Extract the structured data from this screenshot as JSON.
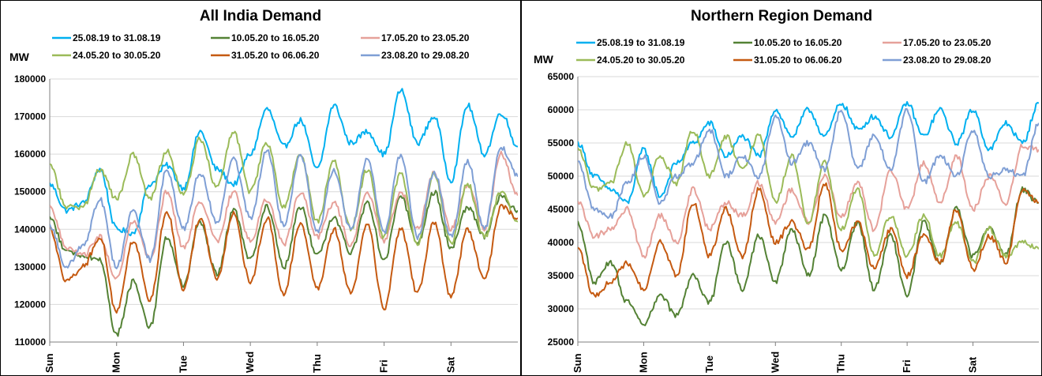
{
  "chart_data": [
    {
      "type": "line",
      "title": "All India Demand",
      "ylabel": "MW",
      "ylim": [
        110000,
        180000
      ],
      "yticks": [
        110000,
        120000,
        130000,
        140000,
        150000,
        160000,
        170000,
        180000
      ],
      "ytick_labels": [
        "110000",
        "120000",
        "130000",
        "140000",
        "150000",
        "160000",
        "170000",
        "180000"
      ],
      "x_labels": [
        "Sun",
        "Mon",
        "Tue",
        "Wed",
        "Thu",
        "Fri",
        "Sat"
      ],
      "x_hours": [
        0,
        24,
        48,
        72,
        96,
        120,
        144
      ],
      "x_range_hours": [
        0,
        168
      ],
      "legend_position": "top",
      "grid": "horizontal",
      "series": [
        {
          "name": "25.08.19 to 31.08.19",
          "color": "#00b0f0",
          "x": [
            0,
            6,
            12,
            18,
            24,
            30,
            36,
            42,
            48,
            54,
            60,
            66,
            72,
            78,
            84,
            90,
            96,
            102,
            108,
            114,
            120,
            126,
            132,
            138,
            144,
            150,
            156,
            162,
            168
          ],
          "values": [
            152000,
            145000,
            147000,
            156000,
            140000,
            139000,
            152000,
            157000,
            151000,
            166000,
            156000,
            152000,
            160000,
            172000,
            162000,
            169000,
            156000,
            173000,
            163000,
            166000,
            160000,
            177000,
            163000,
            170000,
            153000,
            173000,
            160000,
            171000,
            162000
          ]
        },
        {
          "name": "10.05.20 to 16.05.20",
          "color": "#548235",
          "x": [
            0,
            6,
            12,
            18,
            24,
            30,
            36,
            42,
            48,
            54,
            60,
            66,
            72,
            78,
            84,
            90,
            96,
            102,
            108,
            114,
            120,
            126,
            132,
            138,
            144,
            150,
            156,
            162,
            168
          ],
          "values": [
            143000,
            134000,
            133000,
            132000,
            112000,
            126000,
            114000,
            138000,
            125000,
            142000,
            128000,
            145000,
            132000,
            146000,
            130000,
            146000,
            133000,
            143000,
            134000,
            147000,
            132000,
            149000,
            136000,
            150000,
            135000,
            146000,
            138000,
            149000,
            145000
          ]
        },
        {
          "name": "17.05.20 to 23.05.20",
          "color": "#e6a19a",
          "x": [
            0,
            6,
            12,
            18,
            24,
            30,
            36,
            42,
            48,
            54,
            60,
            66,
            72,
            78,
            84,
            90,
            96,
            102,
            108,
            114,
            120,
            126,
            132,
            138,
            144,
            150,
            156,
            162,
            168
          ],
          "values": [
            146000,
            135000,
            133000,
            138000,
            127000,
            142000,
            132000,
            150000,
            135000,
            147000,
            137000,
            150000,
            137000,
            148000,
            136000,
            150000,
            138000,
            147000,
            136000,
            150000,
            137000,
            150000,
            140000,
            155000,
            140000,
            152000,
            140000,
            160000,
            149000
          ]
        },
        {
          "name": "24.05.20 to 30.05.20",
          "color": "#9bbb59",
          "x": [
            0,
            6,
            12,
            18,
            24,
            30,
            36,
            42,
            48,
            54,
            60,
            66,
            72,
            78,
            84,
            90,
            96,
            102,
            108,
            114,
            120,
            126,
            132,
            138,
            144,
            150,
            156,
            162,
            168
          ],
          "values": [
            157000,
            146000,
            146000,
            156000,
            148000,
            160000,
            148000,
            161000,
            149000,
            164000,
            151000,
            166000,
            150000,
            163000,
            146000,
            160000,
            142000,
            158000,
            140000,
            156000,
            138000,
            155000,
            136000,
            155000,
            136000,
            152000,
            138000,
            150000,
            142000
          ]
        },
        {
          "name": "31.05.20 to 06.06.20",
          "color": "#c55a11",
          "x": [
            0,
            6,
            12,
            18,
            24,
            30,
            36,
            42,
            48,
            54,
            60,
            66,
            72,
            78,
            84,
            90,
            96,
            102,
            108,
            114,
            120,
            126,
            132,
            138,
            144,
            150,
            156,
            162,
            168
          ],
          "values": [
            140000,
            126000,
            130000,
            138000,
            118000,
            137000,
            121000,
            145000,
            124000,
            143000,
            127000,
            144000,
            126000,
            143000,
            123000,
            142000,
            124000,
            140000,
            123000,
            141000,
            119000,
            140000,
            123000,
            142000,
            122000,
            140000,
            127000,
            146000,
            143000
          ]
        },
        {
          "name": "23.08.20 to 29.08.20",
          "color": "#7f9fd5",
          "x": [
            0,
            6,
            12,
            18,
            24,
            30,
            36,
            42,
            48,
            54,
            60,
            66,
            72,
            78,
            84,
            90,
            96,
            102,
            108,
            114,
            120,
            126,
            132,
            138,
            144,
            150,
            156,
            162,
            168
          ],
          "values": [
            141000,
            130000,
            136000,
            148000,
            130000,
            145000,
            132000,
            156000,
            140000,
            155000,
            142000,
            159000,
            143000,
            161000,
            141000,
            160000,
            139000,
            156000,
            140000,
            159000,
            139000,
            160000,
            138000,
            155000,
            138000,
            158000,
            140000,
            162000,
            154000
          ]
        }
      ]
    },
    {
      "type": "line",
      "title": "Northern Region Demand",
      "ylabel": "MW",
      "ylim": [
        25000,
        65000
      ],
      "yticks": [
        25000,
        30000,
        35000,
        40000,
        45000,
        50000,
        55000,
        60000,
        65000
      ],
      "ytick_labels": [
        "25000",
        "30000",
        "35000",
        "40000",
        "45000",
        "50000",
        "55000",
        "60000",
        "65000"
      ],
      "x_labels": [
        "Sun",
        "Mon",
        "Tue",
        "Wed",
        "Thu",
        "Fri",
        "Sat"
      ],
      "x_hours": [
        0,
        24,
        48,
        72,
        96,
        120,
        144
      ],
      "x_range_hours": [
        0,
        168
      ],
      "legend_position": "top",
      "grid": "horizontal",
      "series": [
        {
          "name": "25.08.19 to 31.08.19",
          "color": "#00b0f0",
          "x": [
            0,
            6,
            12,
            18,
            24,
            30,
            36,
            42,
            48,
            54,
            60,
            66,
            72,
            78,
            84,
            90,
            96,
            102,
            108,
            114,
            120,
            126,
            132,
            138,
            144,
            150,
            156,
            162,
            168
          ],
          "values": [
            55000,
            50000,
            48000,
            46000,
            54000,
            47000,
            52000,
            55000,
            58000,
            53000,
            56000,
            53000,
            60000,
            56000,
            60000,
            56000,
            61000,
            57000,
            59000,
            56000,
            61000,
            56000,
            60000,
            55000,
            60000,
            54000,
            58000,
            55000,
            61000
          ]
        },
        {
          "name": "10.05.20 to 16.05.20",
          "color": "#548235",
          "x": [
            0,
            6,
            12,
            18,
            24,
            30,
            36,
            42,
            48,
            54,
            60,
            66,
            72,
            78,
            84,
            90,
            96,
            102,
            108,
            114,
            120,
            126,
            132,
            138,
            144,
            150,
            156,
            162,
            168
          ],
          "values": [
            43000,
            34000,
            37000,
            31000,
            27500,
            32000,
            29000,
            35000,
            31000,
            40000,
            33000,
            41000,
            34000,
            42000,
            35000,
            44000,
            36000,
            43000,
            33000,
            41000,
            32000,
            43000,
            37000,
            45000,
            38000,
            42000,
            38000,
            48000,
            46000
          ]
        },
        {
          "name": "17.05.20 to 23.05.20",
          "color": "#e6a19a",
          "x": [
            0,
            6,
            12,
            18,
            24,
            30,
            36,
            42,
            48,
            54,
            60,
            66,
            72,
            78,
            84,
            90,
            96,
            102,
            108,
            114,
            120,
            126,
            132,
            138,
            144,
            150,
            156,
            162,
            168
          ],
          "values": [
            46000,
            41000,
            42000,
            45000,
            38000,
            44000,
            40000,
            48000,
            42000,
            46000,
            44000,
            49000,
            43000,
            48000,
            43000,
            50000,
            44000,
            49000,
            42000,
            51000,
            45000,
            52000,
            46000,
            53000,
            45000,
            50000,
            46000,
            54500,
            54000
          ]
        },
        {
          "name": "24.05.20 to 30.05.20",
          "color": "#9bbb59",
          "x": [
            0,
            6,
            12,
            18,
            24,
            30,
            36,
            42,
            48,
            54,
            60,
            66,
            72,
            78,
            84,
            90,
            96,
            102,
            108,
            114,
            120,
            126,
            132,
            138,
            144,
            150,
            156,
            162,
            168
          ],
          "values": [
            54000,
            48000,
            49000,
            55000,
            47000,
            53000,
            49000,
            57000,
            50000,
            56000,
            51000,
            56000,
            46000,
            53000,
            43000,
            52000,
            42000,
            48000,
            38000,
            44000,
            38000,
            44000,
            38000,
            43000,
            37000,
            42000,
            38000,
            40000,
            39000
          ]
        },
        {
          "name": "31.05.20 to 06.06.20",
          "color": "#c55a11",
          "x": [
            0,
            6,
            12,
            18,
            24,
            30,
            36,
            42,
            48,
            54,
            60,
            66,
            72,
            78,
            84,
            90,
            96,
            102,
            108,
            114,
            120,
            126,
            132,
            138,
            144,
            150,
            156,
            162,
            168
          ],
          "values": [
            39000,
            32000,
            34000,
            37000,
            33000,
            40000,
            35000,
            46000,
            38000,
            45000,
            38000,
            48000,
            40000,
            43000,
            39000,
            49000,
            39000,
            43000,
            36000,
            42000,
            35000,
            41000,
            37000,
            45000,
            36000,
            41000,
            37000,
            48000,
            46000
          ]
        },
        {
          "name": "23.08.20 to 29.08.20",
          "color": "#7f9fd5",
          "x": [
            0,
            6,
            12,
            18,
            24,
            30,
            36,
            42,
            48,
            54,
            60,
            66,
            72,
            78,
            84,
            90,
            96,
            102,
            108,
            114,
            120,
            126,
            132,
            138,
            144,
            150,
            156,
            162,
            168
          ],
          "values": [
            52000,
            45000,
            44000,
            49000,
            53000,
            46000,
            50000,
            52000,
            57000,
            50000,
            53000,
            50000,
            59000,
            52000,
            55000,
            51000,
            60000,
            51000,
            56000,
            51000,
            60000,
            49000,
            53000,
            50000,
            57000,
            50000,
            51000,
            50000,
            58000
          ]
        }
      ]
    }
  ]
}
